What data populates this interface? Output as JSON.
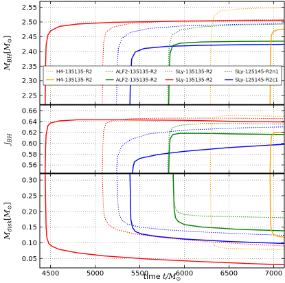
{
  "chart_data": [
    {
      "type": "line",
      "ylabel": "M_{BH}[M_⊙]",
      "ylabel_main": "M",
      "ylabel_sub": "BH",
      "ylabel_unit": "[M",
      "ylabel_unit_sub": "⊙",
      "ylabel_unit_close": "]",
      "xlim": [
        4380,
        7120
      ],
      "ylim": [
        2.22,
        2.57
      ],
      "yticks": [
        2.25,
        2.3,
        2.35,
        2.4,
        2.45,
        2.5,
        2.55
      ],
      "ytick_labels": [
        "2.25",
        "2.30",
        "2.35",
        "2.40",
        "2.45",
        "2.50",
        "2.55"
      ],
      "grid": true,
      "legend": {
        "placement": "bottom",
        "entries": [
          {
            "label": "H4-135135-R2",
            "style": "dotted",
            "color": "#ffa500"
          },
          {
            "label": "ALF2-135135-R2",
            "style": "dotted",
            "color": "#008000"
          },
          {
            "label": "SLy-135135-R2",
            "style": "dotted",
            "color": "#ff0000"
          },
          {
            "label": "SLy-125145-R2n1",
            "style": "dotted",
            "color": "#0000ff"
          },
          {
            "label": "H4-135135-R2",
            "style": "solid",
            "color": "#ffa500"
          },
          {
            "label": "ALF2-135135-R2",
            "style": "solid",
            "color": "#008000"
          },
          {
            "label": "SLy-135135-R2",
            "style": "solid",
            "color": "#ff0000"
          },
          {
            "label": "SLy-125145-R2c1",
            "style": "solid",
            "color": "#0000ff"
          }
        ]
      },
      "series": [
        {
          "color": "#ff0000",
          "style": "solid",
          "x": [
            4440,
            4445,
            4450,
            4470,
            4500,
            4600,
            4800,
            5200,
            6000,
            7120
          ],
          "y": [
            2.22,
            2.35,
            2.42,
            2.455,
            2.47,
            2.485,
            2.493,
            2.499,
            2.503,
            2.505
          ]
        },
        {
          "color": "#ff0000",
          "style": "dotted",
          "x": [
            5080,
            5085,
            5095,
            5120,
            5200,
            5400,
            5800,
            6500,
            7120
          ],
          "y": [
            2.22,
            2.35,
            2.43,
            2.465,
            2.483,
            2.495,
            2.502,
            2.506,
            2.508
          ]
        },
        {
          "color": "#0000ff",
          "style": "dotted",
          "x": [
            5240,
            5245,
            5260,
            5300,
            5400,
            5600,
            6000,
            6600,
            7120
          ],
          "y": [
            2.22,
            2.33,
            2.41,
            2.445,
            2.465,
            2.478,
            2.487,
            2.492,
            2.494
          ]
        },
        {
          "color": "#0000ff",
          "style": "solid",
          "x": [
            5390,
            5395,
            5410,
            5450,
            5550,
            5800,
            6200,
            6700,
            7120
          ],
          "y": [
            2.22,
            2.31,
            2.375,
            2.398,
            2.41,
            2.417,
            2.421,
            2.423,
            2.424
          ]
        },
        {
          "color": "#008000",
          "style": "dotted",
          "x": [
            5815,
            5820,
            5830,
            5860,
            5950,
            6200,
            6600,
            7120
          ],
          "y": [
            2.22,
            2.35,
            2.42,
            2.455,
            2.473,
            2.484,
            2.49,
            2.493
          ]
        },
        {
          "color": "#008000",
          "style": "solid",
          "x": [
            5825,
            5830,
            5840,
            5870,
            5950,
            6200,
            6600,
            7120
          ],
          "y": [
            2.22,
            2.33,
            2.395,
            2.42,
            2.428,
            2.432,
            2.434,
            2.435
          ]
        },
        {
          "color": "#ffa500",
          "style": "dotted",
          "x": [
            6290,
            6295,
            6305,
            6330,
            6400,
            6600,
            6900,
            7120
          ],
          "y": [
            2.22,
            2.4,
            2.48,
            2.52,
            2.537,
            2.544,
            2.547,
            2.548
          ]
        },
        {
          "color": "#ffa500",
          "style": "solid",
          "x": [
            6960,
            6965,
            6975,
            7000,
            7050,
            7120
          ],
          "y": [
            2.22,
            2.4,
            2.455,
            2.468,
            2.474,
            2.476
          ]
        }
      ]
    },
    {
      "type": "line",
      "ylabel": "j_{BH}",
      "ylabel_main": "j",
      "ylabel_sub": "BH",
      "xlim": [
        4380,
        7120
      ],
      "ylim": [
        0.545,
        0.67
      ],
      "yticks": [
        0.56,
        0.58,
        0.6,
        0.62,
        0.64,
        0.66
      ],
      "ytick_labels": [
        "0.56",
        "0.58",
        "0.60",
        "0.62",
        "0.64",
        "0.66"
      ],
      "grid": true,
      "series": [
        {
          "color": "#ff0000",
          "style": "solid",
          "x": [
            4440,
            4445,
            4450,
            4470,
            4500,
            4600,
            4800,
            5200,
            6000,
            6600,
            7120
          ],
          "y": [
            0.545,
            0.59,
            0.615,
            0.632,
            0.637,
            0.641,
            0.643,
            0.643,
            0.642,
            0.64,
            0.639
          ]
        },
        {
          "color": "#ff0000",
          "style": "dotted",
          "x": [
            5080,
            5085,
            5095,
            5120,
            5200,
            5400,
            5800,
            6500,
            7120
          ],
          "y": [
            0.545,
            0.59,
            0.622,
            0.636,
            0.642,
            0.645,
            0.646,
            0.646,
            0.645
          ]
        },
        {
          "color": "#0000ff",
          "style": "dotted",
          "x": [
            5240,
            5250,
            5300,
            5400,
            5600,
            6000,
            6600,
            7120
          ],
          "y": [
            0.545,
            0.575,
            0.595,
            0.607,
            0.617,
            0.624,
            0.628,
            0.63
          ]
        },
        {
          "color": "#0000ff",
          "style": "solid",
          "x": [
            5420,
            5425,
            5440,
            5500,
            5700,
            6000,
            6500,
            7120
          ],
          "y": [
            0.545,
            0.556,
            0.566,
            0.572,
            0.579,
            0.585,
            0.592,
            0.598
          ]
        },
        {
          "color": "#008000",
          "style": "dotted",
          "x": [
            5815,
            5820,
            5830,
            5860,
            5950,
            6200,
            6600,
            7120
          ],
          "y": [
            0.545,
            0.59,
            0.615,
            0.628,
            0.633,
            0.636,
            0.636,
            0.635
          ]
        },
        {
          "color": "#008000",
          "style": "solid",
          "x": [
            5825,
            5830,
            5840,
            5870,
            5950,
            6200,
            6600,
            7120
          ],
          "y": [
            0.545,
            0.585,
            0.608,
            0.616,
            0.618,
            0.618,
            0.617,
            0.616
          ]
        },
        {
          "color": "#ffa500",
          "style": "dotted",
          "x": [
            6290,
            6295,
            6305,
            6330,
            6400,
            6600,
            6900,
            7120
          ],
          "y": [
            0.545,
            0.6,
            0.635,
            0.647,
            0.65,
            0.651,
            0.65,
            0.649
          ]
        },
        {
          "color": "#ffa500",
          "style": "solid",
          "x": [
            6960,
            6965,
            6975,
            7000,
            7050,
            7120
          ],
          "y": [
            0.545,
            0.59,
            0.612,
            0.619,
            0.62,
            0.62
          ]
        }
      ]
    },
    {
      "type": "line",
      "ylabel": "M_{disk}[M_⊙]",
      "ylabel_main": "M",
      "ylabel_sub": "disk",
      "ylabel_unit": "[M",
      "ylabel_unit_sub": "⊙",
      "ylabel_unit_close": "]",
      "xlabel": "time t/M_⊙",
      "xlabel_text": "time ",
      "xlabel_math": "t/M",
      "xlabel_sub": "⊙",
      "xlim": [
        4380,
        7120
      ],
      "ylim": [
        0.02,
        0.32
      ],
      "yticks": [
        0.05,
        0.1,
        0.15,
        0.2,
        0.25,
        0.3
      ],
      "ytick_labels": [
        "0.05",
        "0.10",
        "0.15",
        "0.20",
        "0.25",
        "0.30"
      ],
      "xticks": [
        4500,
        5000,
        5500,
        6000,
        6500,
        7000
      ],
      "xtick_labels": [
        "4500",
        "5000",
        "5500",
        "6000",
        "6500",
        "7000"
      ],
      "grid": true,
      "series": [
        {
          "color": "#ff0000",
          "style": "solid",
          "x": [
            4440,
            4450,
            4460,
            4480,
            4520,
            4600,
            4800,
            5100,
            5600,
            6200,
            6800,
            7120
          ],
          "y": [
            0.32,
            0.15,
            0.115,
            0.098,
            0.088,
            0.079,
            0.068,
            0.058,
            0.048,
            0.04,
            0.033,
            0.03
          ]
        },
        {
          "color": "#ff0000",
          "style": "dotted",
          "x": [
            5080,
            5090,
            5100,
            5120,
            5160,
            5250,
            5450,
            5800,
            6300,
            6800,
            7120
          ],
          "y": [
            0.32,
            0.23,
            0.19,
            0.17,
            0.155,
            0.141,
            0.128,
            0.115,
            0.103,
            0.094,
            0.09
          ]
        },
        {
          "color": "#0000ff",
          "style": "dotted",
          "x": [
            5245,
            5255,
            5270,
            5300,
            5360,
            5500,
            5800,
            6300,
            6800,
            7120
          ],
          "y": [
            0.32,
            0.225,
            0.19,
            0.172,
            0.16,
            0.15,
            0.141,
            0.133,
            0.127,
            0.124
          ]
        },
        {
          "color": "#0000ff",
          "style": "solid",
          "x": [
            5390,
            5400,
            5420,
            5450,
            5520,
            5700,
            6000,
            6500,
            7000,
            7120
          ],
          "y": [
            0.32,
            0.175,
            0.148,
            0.136,
            0.128,
            0.12,
            0.112,
            0.104,
            0.099,
            0.098
          ]
        },
        {
          "color": "#008000",
          "style": "dotted",
          "x": [
            5870,
            5880,
            5900,
            5930,
            6000,
            6200,
            6600,
            7120
          ],
          "y": [
            0.32,
            0.24,
            0.21,
            0.197,
            0.19,
            0.185,
            0.183,
            0.18
          ]
        },
        {
          "color": "#008000",
          "style": "solid",
          "x": [
            5875,
            5885,
            5900,
            5930,
            6000,
            6200,
            6600,
            7120
          ],
          "y": [
            0.32,
            0.21,
            0.18,
            0.168,
            0.158,
            0.15,
            0.143,
            0.138
          ]
        },
        {
          "color": "#ffa500",
          "style": "dotted",
          "x": [
            6290,
            6300,
            6310,
            6330,
            6380,
            6500,
            6800,
            7120
          ],
          "y": [
            0.32,
            0.15,
            0.11,
            0.092,
            0.085,
            0.082,
            0.08,
            0.078
          ]
        },
        {
          "color": "#ffa500",
          "style": "solid",
          "x": [
            6960,
            6965,
            6975,
            6995,
            7050,
            7120
          ],
          "y": [
            0.32,
            0.17,
            0.14,
            0.127,
            0.12,
            0.118
          ]
        }
      ]
    }
  ]
}
